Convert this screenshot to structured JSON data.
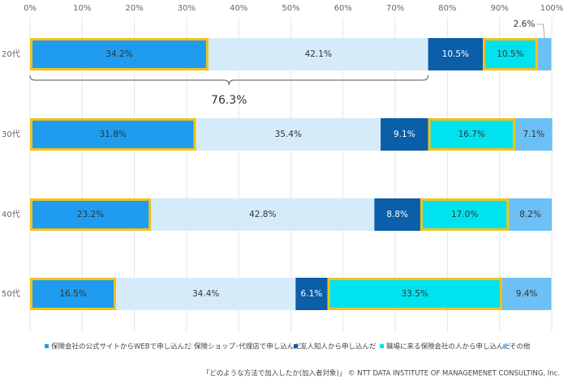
{
  "chart_data": {
    "type": "stacked_bar_horizontal",
    "categories": [
      "20代",
      "30代",
      "40代",
      "50代"
    ],
    "series": [
      {
        "name": "保険会社の公式サイトからWEBで申し込んだ",
        "color": "#1f9cf0",
        "highlight": true,
        "values": [
          34.2,
          31.8,
          23.2,
          16.5
        ],
        "value_labels": [
          "34.2%",
          "31.8%",
          "23.2%",
          "16.5%"
        ]
      },
      {
        "name": "保険ショップ･代理店で申し込んだ",
        "color": "#d5ebfa",
        "highlight": false,
        "values": [
          42.1,
          35.4,
          42.8,
          34.4
        ],
        "value_labels": [
          "42.1%",
          "35.4%",
          "42.8%",
          "34.4%"
        ]
      },
      {
        "name": "友人知人から申し込んだ",
        "color": "#0b5ea8",
        "highlight": false,
        "values": [
          10.5,
          9.1,
          8.8,
          6.1
        ],
        "value_labels": [
          "10.5%",
          "9.1%",
          "8.8%",
          "6.1%"
        ]
      },
      {
        "name": "職場に来る保険会社の人から申し込んだ",
        "color": "#00e3ee",
        "highlight": true,
        "values": [
          10.5,
          16.7,
          17.0,
          33.5
        ],
        "value_labels": [
          "10.5%",
          "16.7%",
          "17.0%",
          "33.5%"
        ]
      },
      {
        "name": "その他",
        "color": "#6cc0f5",
        "highlight": false,
        "values": [
          2.6,
          7.1,
          8.2,
          9.4
        ],
        "value_labels": [
          "2.6%",
          "7.1%",
          "8.2%",
          "9.4%"
        ]
      }
    ],
    "highlight_color": "#f2c21b",
    "xlim": [
      0,
      100
    ],
    "xticks": [
      {
        "value": 0,
        "label": "0%"
      },
      {
        "value": 10,
        "label": "10%"
      },
      {
        "value": 20,
        "label": "20%"
      },
      {
        "value": 30,
        "label": "30%"
      },
      {
        "value": 40,
        "label": "40%"
      },
      {
        "value": 50,
        "label": "50%"
      },
      {
        "value": 60,
        "label": "60%"
      },
      {
        "value": 70,
        "label": "70%"
      },
      {
        "value": 80,
        "label": "80%"
      },
      {
        "value": 90,
        "label": "90%"
      },
      {
        "value": 100,
        "label": "100%"
      }
    ],
    "grid": true,
    "legend": "bottom",
    "annotations": [
      {
        "value": 76.3,
        "label": "76.3%"
      }
    ],
    "source": "「どのような方法で加入したか(加入者対象)」 © NTT DATA INSTITUTE OF MANAGEMENET CONSULTING, Inc."
  }
}
